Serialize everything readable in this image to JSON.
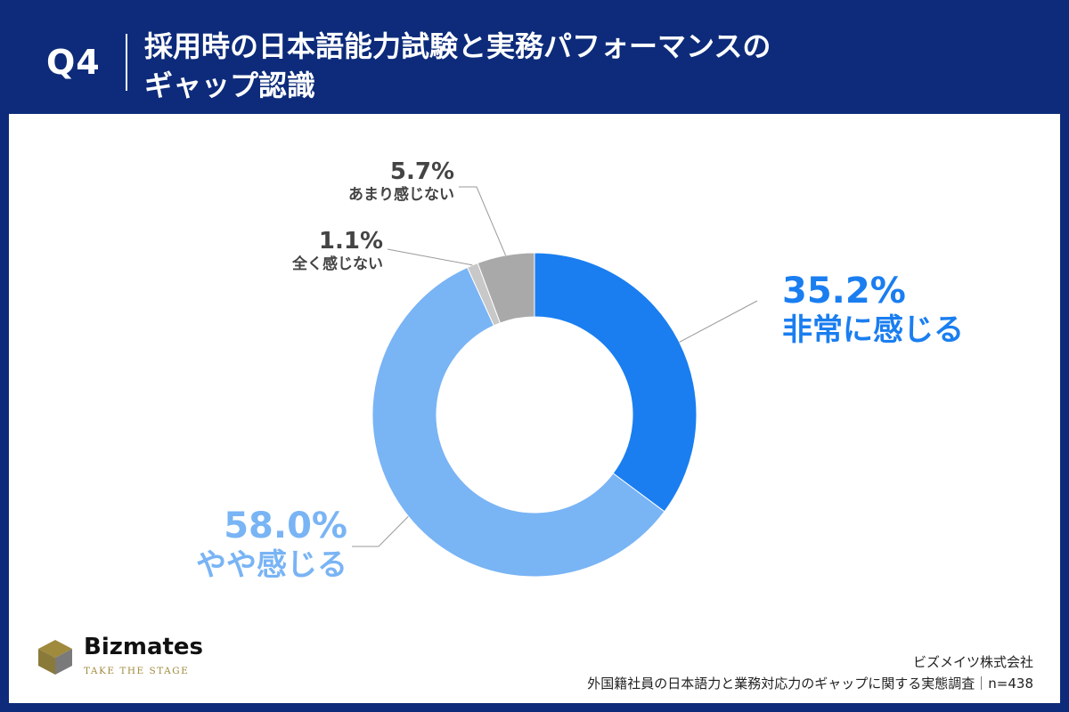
{
  "header": {
    "question_number": "Q4",
    "title_line1": "採用時の日本語能力試験と実務パフォーマンスの",
    "title_line2": "ギャップ認識"
  },
  "chart_data": {
    "type": "pie",
    "style": "donut",
    "slices": [
      {
        "label": "非常に感じる",
        "value": 35.2,
        "value_text": "35.2%",
        "color": "#1a7ef0"
      },
      {
        "label": "やや感じる",
        "value": 58.0,
        "value_text": "58.0%",
        "color": "#79b4f5"
      },
      {
        "label": "全く感じない",
        "value": 1.1,
        "value_text": "1.1%",
        "color": "#c8c8c8"
      },
      {
        "label": "あまり感じない",
        "value": 5.7,
        "value_text": "5.7%",
        "color": "#a9a9a9"
      }
    ]
  },
  "brand": {
    "name": "Bizmates",
    "tagline": "TAKE THE STAGE",
    "colors": {
      "gold": "#a08a3c",
      "olive": "#8a7a3a",
      "grey": "#7a7a7a"
    }
  },
  "footer": {
    "company": "ビズメイツ株式会社",
    "source": "外国籍社員の日本語力と業務対応力のギャップに関する実態調査｜n=438"
  },
  "theme": {
    "navy": "#0d2b7a",
    "white": "#ffffff"
  }
}
